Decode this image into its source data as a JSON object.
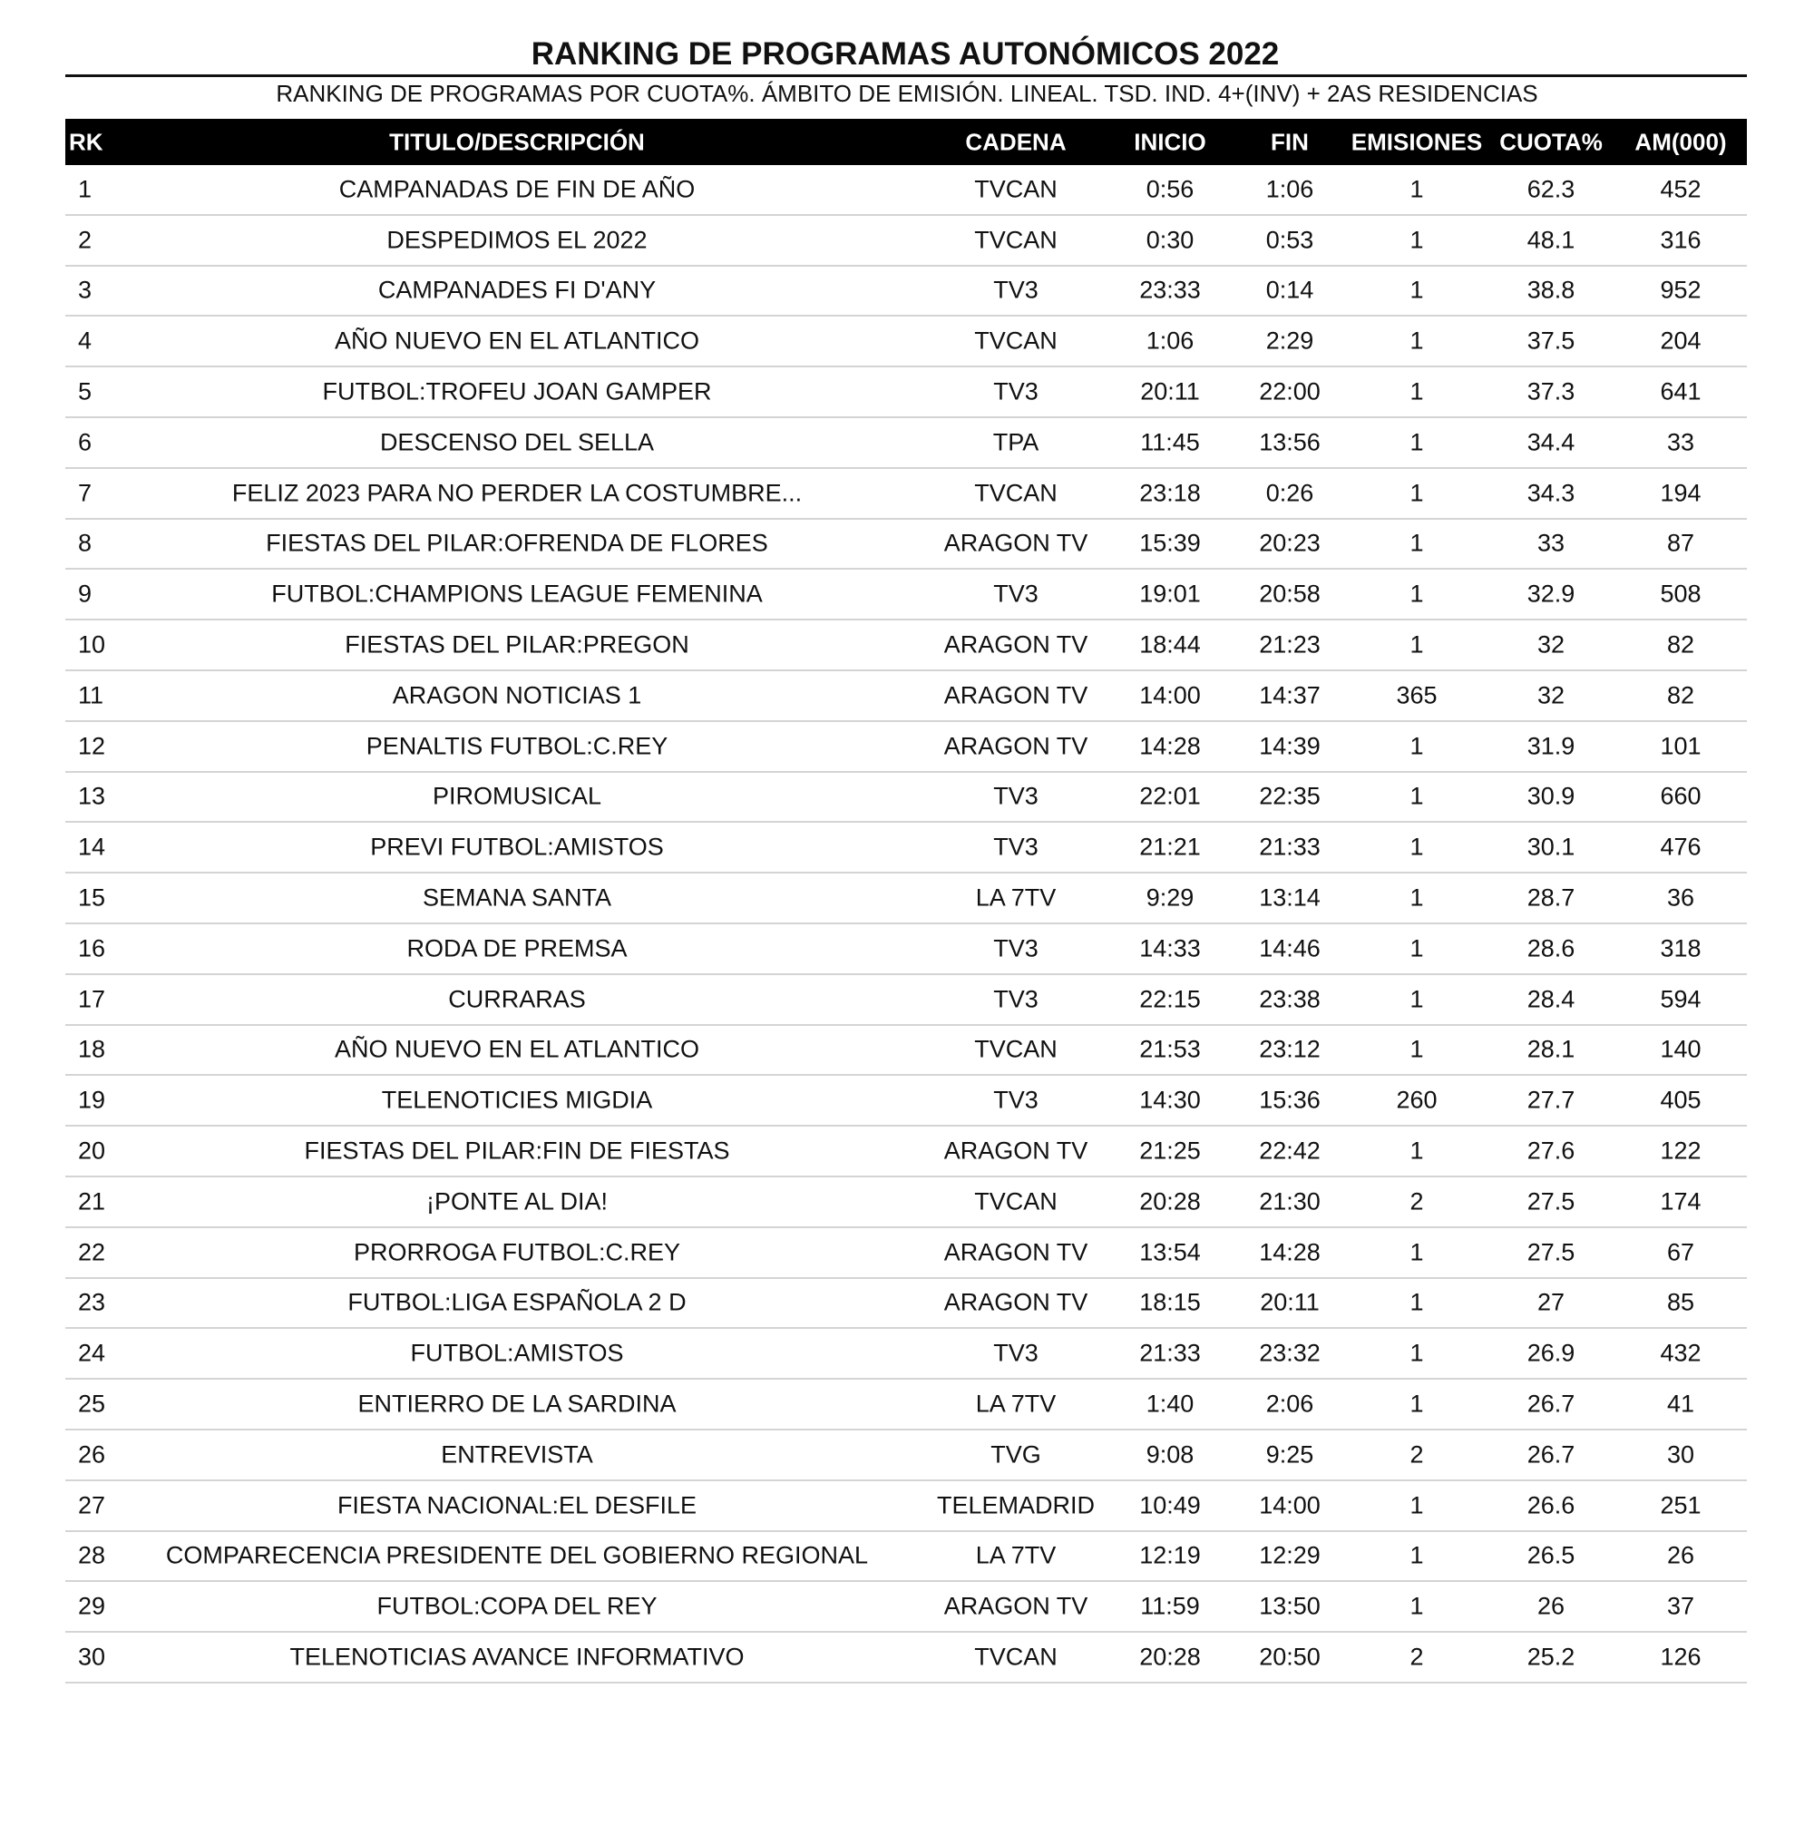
{
  "title": "RANKING DE PROGRAMAS AUTONÓMICOS 2022",
  "subtitle": "RANKING DE PROGRAMAS POR CUOTA%. ÁMBITO DE EMISIÓN. LINEAL. TSD. IND. 4+(INV) + 2AS RESIDENCIAS",
  "columns": [
    "RK",
    "TITULO/DESCRIPCIÓN",
    "CADENA",
    "INICIO",
    "FIN",
    "EMISIONES",
    "CUOTA%",
    "AM(000)"
  ],
  "rows": [
    [
      "1",
      "CAMPANADAS DE FIN DE AÑO",
      "TVCAN",
      "0:56",
      "1:06",
      "1",
      "62.3",
      "452"
    ],
    [
      "2",
      "DESPEDIMOS EL 2022",
      "TVCAN",
      "0:30",
      "0:53",
      "1",
      "48.1",
      "316"
    ],
    [
      "3",
      "CAMPANADES FI D'ANY",
      "TV3",
      "23:33",
      "0:14",
      "1",
      "38.8",
      "952"
    ],
    [
      "4",
      "AÑO NUEVO EN EL ATLANTICO",
      "TVCAN",
      "1:06",
      "2:29",
      "1",
      "37.5",
      "204"
    ],
    [
      "5",
      "FUTBOL:TROFEU JOAN GAMPER",
      "TV3",
      "20:11",
      "22:00",
      "1",
      "37.3",
      "641"
    ],
    [
      "6",
      "DESCENSO DEL SELLA",
      "TPA",
      "11:45",
      "13:56",
      "1",
      "34.4",
      "33"
    ],
    [
      "7",
      "FELIZ 2023 PARA NO PERDER LA COSTUMBRE...",
      "TVCAN",
      "23:18",
      "0:26",
      "1",
      "34.3",
      "194"
    ],
    [
      "8",
      "FIESTAS DEL PILAR:OFRENDA DE FLORES",
      "ARAGON TV",
      "15:39",
      "20:23",
      "1",
      "33",
      "87"
    ],
    [
      "9",
      "FUTBOL:CHAMPIONS LEAGUE FEMENINA",
      "TV3",
      "19:01",
      "20:58",
      "1",
      "32.9",
      "508"
    ],
    [
      "10",
      "FIESTAS DEL PILAR:PREGON",
      "ARAGON TV",
      "18:44",
      "21:23",
      "1",
      "32",
      "82"
    ],
    [
      "11",
      "ARAGON NOTICIAS 1",
      "ARAGON TV",
      "14:00",
      "14:37",
      "365",
      "32",
      "82"
    ],
    [
      "12",
      "PENALTIS FUTBOL:C.REY",
      "ARAGON TV",
      "14:28",
      "14:39",
      "1",
      "31.9",
      "101"
    ],
    [
      "13",
      "PIROMUSICAL",
      "TV3",
      "22:01",
      "22:35",
      "1",
      "30.9",
      "660"
    ],
    [
      "14",
      "PREVI FUTBOL:AMISTOS",
      "TV3",
      "21:21",
      "21:33",
      "1",
      "30.1",
      "476"
    ],
    [
      "15",
      "SEMANA SANTA",
      "LA 7TV",
      "9:29",
      "13:14",
      "1",
      "28.7",
      "36"
    ],
    [
      "16",
      "RODA DE PREMSA",
      "TV3",
      "14:33",
      "14:46",
      "1",
      "28.6",
      "318"
    ],
    [
      "17",
      "CURRARAS",
      "TV3",
      "22:15",
      "23:38",
      "1",
      "28.4",
      "594"
    ],
    [
      "18",
      "AÑO NUEVO EN EL ATLANTICO",
      "TVCAN",
      "21:53",
      "23:12",
      "1",
      "28.1",
      "140"
    ],
    [
      "19",
      "TELENOTICIES MIGDIA",
      "TV3",
      "14:30",
      "15:36",
      "260",
      "27.7",
      "405"
    ],
    [
      "20",
      "FIESTAS DEL PILAR:FIN DE FIESTAS",
      "ARAGON TV",
      "21:25",
      "22:42",
      "1",
      "27.6",
      "122"
    ],
    [
      "21",
      "¡PONTE AL DIA!",
      "TVCAN",
      "20:28",
      "21:30",
      "2",
      "27.5",
      "174"
    ],
    [
      "22",
      "PRORROGA FUTBOL:C.REY",
      "ARAGON TV",
      "13:54",
      "14:28",
      "1",
      "27.5",
      "67"
    ],
    [
      "23",
      "FUTBOL:LIGA ESPAÑOLA 2 D",
      "ARAGON TV",
      "18:15",
      "20:11",
      "1",
      "27",
      "85"
    ],
    [
      "24",
      "FUTBOL:AMISTOS",
      "TV3",
      "21:33",
      "23:32",
      "1",
      "26.9",
      "432"
    ],
    [
      "25",
      "ENTIERRO DE LA SARDINA",
      "LA 7TV",
      "1:40",
      "2:06",
      "1",
      "26.7",
      "41"
    ],
    [
      "26",
      "ENTREVISTA",
      "TVG",
      "9:08",
      "9:25",
      "2",
      "26.7",
      "30"
    ],
    [
      "27",
      "FIESTA NACIONAL:EL DESFILE",
      "TELEMADRID",
      "10:49",
      "14:00",
      "1",
      "26.6",
      "251"
    ],
    [
      "28",
      "COMPARECENCIA PRESIDENTE DEL GOBIERNO REGIONAL",
      "LA 7TV",
      "12:19",
      "12:29",
      "1",
      "26.5",
      "26"
    ],
    [
      "29",
      "FUTBOL:COPA DEL REY",
      "ARAGON TV",
      "11:59",
      "13:50",
      "1",
      "26",
      "37"
    ],
    [
      "30",
      "TELENOTICIAS AVANCE INFORMATIVO",
      "TVCAN",
      "20:28",
      "20:50",
      "2",
      "25.2",
      "126"
    ]
  ]
}
